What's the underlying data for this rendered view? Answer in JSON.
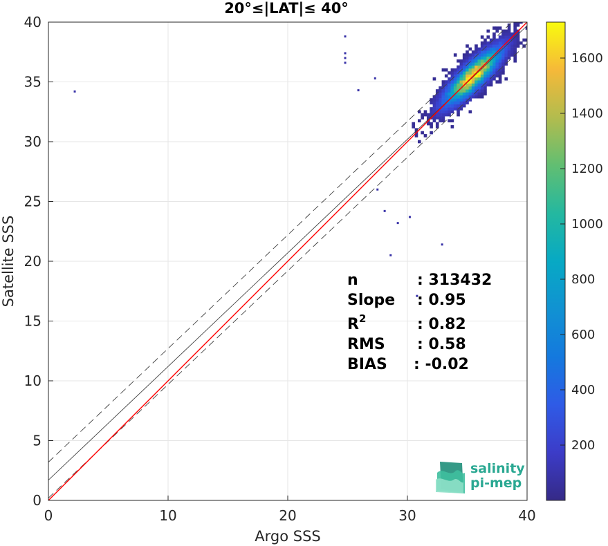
{
  "chart_data": {
    "type": "heatmap",
    "title": "20°≤|LAT|≤ 40°",
    "xlabel": "Argo SSS",
    "ylabel": "Satellite SSS",
    "xlim": [
      0,
      40
    ],
    "ylim": [
      0,
      40
    ],
    "xticks": [
      "0",
      "10",
      "20",
      "30",
      "40"
    ],
    "yticks": [
      "0",
      "5",
      "10",
      "15",
      "20",
      "25",
      "30",
      "35",
      "40"
    ],
    "grid": true,
    "colorbar": {
      "colormap": "parula",
      "range": [
        0,
        1730
      ],
      "ticks": [
        "200",
        "400",
        "600",
        "800",
        "1000",
        "1200",
        "1400",
        "1600"
      ]
    },
    "density_peak": {
      "x": 35.5,
      "y": 35.5
    },
    "lines": [
      {
        "style": "solid",
        "color": "#404040",
        "slope": 0.95,
        "intercept": 1.7
      },
      {
        "style": "dashed",
        "color": "#404040",
        "slope": 0.95,
        "intercept": 3.2
      },
      {
        "style": "dashed",
        "color": "#404040",
        "slope": 0.95,
        "intercept": 0.2
      },
      {
        "style": "solid",
        "color": "#ff0000",
        "slope": 1.0,
        "intercept": 0.0
      }
    ],
    "outliers": [
      {
        "x": 2.2,
        "y": 34.2
      },
      {
        "x": 24.8,
        "y": 38.8
      },
      {
        "x": 24.8,
        "y": 37.4
      },
      {
        "x": 24.8,
        "y": 37.0
      },
      {
        "x": 24.8,
        "y": 36.6
      },
      {
        "x": 27.3,
        "y": 35.3
      },
      {
        "x": 25.9,
        "y": 34.3
      },
      {
        "x": 28.6,
        "y": 20.5
      },
      {
        "x": 28.1,
        "y": 24.2
      },
      {
        "x": 30.2,
        "y": 23.7
      },
      {
        "x": 27.5,
        "y": 26.0
      },
      {
        "x": 25.5,
        "y": 15.2
      },
      {
        "x": 30.8,
        "y": 17.1
      },
      {
        "x": 32.9,
        "y": 21.4
      },
      {
        "x": 29.2,
        "y": 23.2
      }
    ]
  },
  "stats": {
    "labels": [
      "n",
      "Slope",
      "R",
      "RMS",
      "BIAS"
    ],
    "r_superscript": "2",
    "values": [
      ": 313432",
      ": 0.95",
      ": 0.82",
      ": 0.58",
      ": -0.02"
    ]
  },
  "logo": {
    "line1": "salinity",
    "line2": "pi-mep",
    "color": "#2aa892"
  }
}
